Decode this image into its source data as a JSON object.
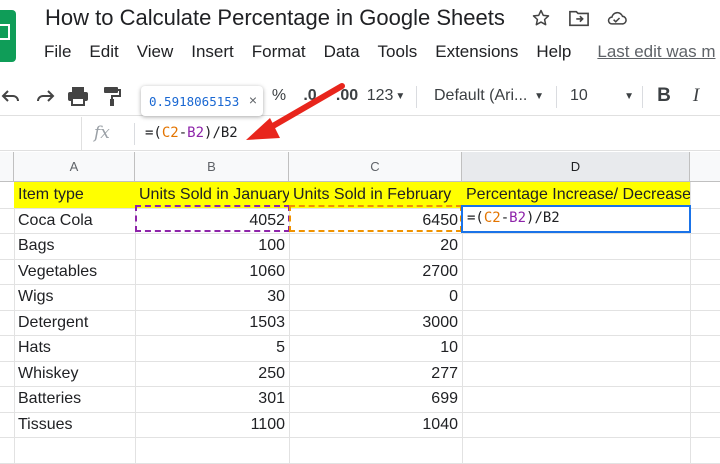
{
  "title_bar": {
    "doc_title": "How to Calculate Percentage in Google Sheets",
    "icons": [
      "star-icon",
      "move-to-folder-icon",
      "cloud-status-icon"
    ]
  },
  "menu": {
    "items": [
      "File",
      "Edit",
      "View",
      "Insert",
      "Format",
      "Data",
      "Tools",
      "Extensions",
      "Help"
    ],
    "last_edit": "Last edit was m"
  },
  "toolbar": {
    "percent": "%",
    "decrease_decimal": ".0",
    "increase_decimal": ".00",
    "more_formats": "123",
    "font": "Default (Ari...",
    "font_size": "10",
    "bold": "B",
    "italic": "I"
  },
  "tooltip": {
    "value": "0.5918065153",
    "close": "×"
  },
  "formula_bar": {
    "fx": "fx",
    "open": "=(",
    "c2": "C2",
    "minus": "-",
    "b2": "B2",
    "close": ")/B2"
  },
  "columns": [
    "A",
    "B",
    "C",
    "D"
  ],
  "sheet": {
    "headers": [
      "Item type",
      "Units Sold in January",
      "Units Sold in February",
      "Percentage Increase/ Decrease"
    ],
    "rows": [
      {
        "item": "Coca Cola",
        "jan": "4052",
        "feb": "6450"
      },
      {
        "item": "Bags",
        "jan": "100",
        "feb": "20"
      },
      {
        "item": "Vegetables",
        "jan": "1060",
        "feb": "2700"
      },
      {
        "item": "Wigs",
        "jan": "30",
        "feb": "0"
      },
      {
        "item": "Detergent",
        "jan": "1503",
        "feb": "3000"
      },
      {
        "item": "Hats",
        "jan": "5",
        "feb": "10"
      },
      {
        "item": "Whiskey",
        "jan": "250",
        "feb": "277"
      },
      {
        "item": "Batteries",
        "jan": "301",
        "feb": "699"
      },
      {
        "item": "Tissues",
        "jan": "1100",
        "feb": "1040"
      }
    ],
    "editing_cell": "D2"
  },
  "colors": {
    "header_fill": "#ffff00",
    "ref_c2": "#e37400",
    "ref_b2": "#8e24aa",
    "active_cell": "#1a73e8",
    "annotation_arrow": "#e8251c"
  }
}
